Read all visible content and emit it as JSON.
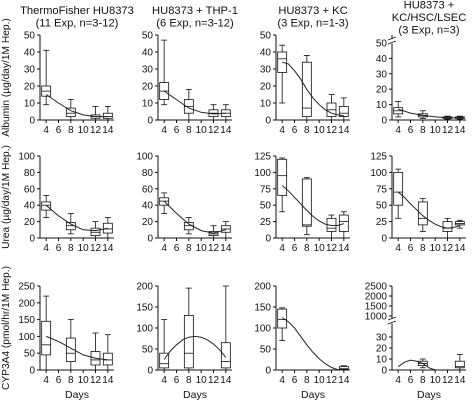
{
  "chart_data": {
    "type": "box",
    "columns": [
      "ThermoFisher HU8373\n(11 Exp, n=3-12)",
      "HU8373 + THP-1\n(6 Exp, n=3-12)",
      "HU8373 + KC\n(3 Exp, n=1-3)",
      "HU8373 +\nKC/HSC/LSEC\n(3 Exp, n=3)"
    ],
    "rows": [
      "Albumin (µg/day/1M Hep.)",
      "Urea (µg/day/1M Hep.)",
      "CYP3A4 (pmol/hr/1M Hep.)"
    ],
    "xlabel": "Days",
    "x_ticks": [
      4,
      6,
      8,
      10,
      12,
      14
    ],
    "panels": [
      {
        "row": 0,
        "col": 0,
        "ylim": [
          0,
          50
        ],
        "yticks": [
          0,
          10,
          20,
          30,
          40,
          50
        ],
        "boxes": [
          {
            "x": 4,
            "min": 9,
            "q1": 14,
            "median": 17,
            "q3": 20,
            "max": 41
          },
          {
            "x": 8,
            "min": 0,
            "q1": 2,
            "median": 4,
            "q3": 7,
            "max": 12
          },
          {
            "x": 12,
            "min": 0,
            "q1": 1,
            "median": 2,
            "q3": 3,
            "max": 8
          },
          {
            "x": 14,
            "min": 0,
            "q1": 1,
            "median": 2,
            "q3": 4,
            "max": 8
          }
        ],
        "curve": [
          [
            4,
            15
          ],
          [
            6,
            10
          ],
          [
            8,
            5.5
          ],
          [
            10,
            3
          ],
          [
            12,
            2
          ],
          [
            14,
            2
          ]
        ]
      },
      {
        "row": 0,
        "col": 1,
        "ylim": [
          0,
          50
        ],
        "yticks": [
          0,
          10,
          20,
          30,
          40,
          50
        ],
        "boxes": [
          {
            "x": 4,
            "min": 9,
            "q1": 12,
            "median": 17,
            "q3": 22,
            "max": 47
          },
          {
            "x": 8,
            "min": 0,
            "q1": 4,
            "median": 8,
            "q3": 12,
            "max": 18
          },
          {
            "x": 12,
            "min": 0,
            "q1": 2,
            "median": 4,
            "q3": 6,
            "max": 9
          },
          {
            "x": 14,
            "min": 0,
            "q1": 2,
            "median": 4,
            "q3": 6,
            "max": 9
          }
        ],
        "curve": [
          [
            4,
            17
          ],
          [
            6,
            12
          ],
          [
            8,
            7
          ],
          [
            10,
            4.5
          ],
          [
            12,
            3.5
          ],
          [
            14,
            4
          ]
        ]
      },
      {
        "row": 0,
        "col": 2,
        "ylim": [
          0,
          50
        ],
        "yticks": [
          0,
          10,
          20,
          30,
          40,
          50
        ],
        "boxes": [
          {
            "x": 4,
            "min": 10,
            "q1": 28,
            "median": 36,
            "q3": 40,
            "max": 44
          },
          {
            "x": 8,
            "min": 0,
            "q1": 2,
            "median": 7,
            "q3": 34,
            "max": 38
          },
          {
            "x": 12,
            "min": 0,
            "q1": 2,
            "median": 6,
            "q3": 10,
            "max": 15
          },
          {
            "x": 14,
            "min": 0,
            "q1": 2,
            "median": 4,
            "q3": 8,
            "max": 13
          }
        ],
        "curve": [
          [
            4,
            34
          ],
          [
            5,
            33
          ],
          [
            6,
            29
          ],
          [
            7,
            24
          ],
          [
            8,
            18
          ],
          [
            9,
            13
          ],
          [
            10,
            9
          ],
          [
            11,
            6
          ],
          [
            12,
            4
          ],
          [
            13,
            3
          ],
          [
            14,
            2.5
          ]
        ]
      },
      {
        "row": 0,
        "col": 3,
        "ylim": [
          0,
          50
        ],
        "yticks": [
          0,
          10,
          20,
          30,
          40,
          50
        ],
        "axis_break": true,
        "boxes": [
          {
            "x": 4,
            "min": 2,
            "q1": 4,
            "median": 6,
            "q3": 8,
            "max": 12
          },
          {
            "x": 8,
            "min": 1,
            "q1": 2,
            "median": 3,
            "q3": 4,
            "max": 6
          },
          {
            "x": 12,
            "min": 0.5,
            "q1": 1,
            "median": 1.5,
            "q3": 2,
            "max": 2.5
          },
          {
            "x": 14,
            "min": 0.5,
            "q1": 1,
            "median": 1.5,
            "q3": 2,
            "max": 2.5
          }
        ],
        "curve": [
          [
            4,
            7
          ],
          [
            6,
            4.5
          ],
          [
            8,
            3
          ],
          [
            10,
            2
          ],
          [
            12,
            1.5
          ],
          [
            14,
            1.5
          ]
        ]
      },
      {
        "row": 1,
        "col": 0,
        "ylim": [
          0,
          100
        ],
        "yticks": [
          0,
          20,
          40,
          60,
          80,
          100
        ],
        "boxes": [
          {
            "x": 4,
            "min": 25,
            "q1": 34,
            "median": 40,
            "q3": 44,
            "max": 52
          },
          {
            "x": 8,
            "min": 5,
            "q1": 10,
            "median": 15,
            "q3": 19,
            "max": 30
          },
          {
            "x": 12,
            "min": 0,
            "q1": 3,
            "median": 7,
            "q3": 12,
            "max": 20
          },
          {
            "x": 14,
            "min": 0,
            "q1": 6,
            "median": 11,
            "q3": 18,
            "max": 25
          }
        ],
        "curve": [
          [
            4,
            40
          ],
          [
            6,
            27
          ],
          [
            8,
            17
          ],
          [
            10,
            10
          ],
          [
            12,
            9
          ],
          [
            14,
            12
          ]
        ]
      },
      {
        "row": 1,
        "col": 1,
        "ylim": [
          0,
          100
        ],
        "yticks": [
          0,
          20,
          40,
          60,
          80,
          100
        ],
        "boxes": [
          {
            "x": 4,
            "min": 30,
            "q1": 40,
            "median": 45,
            "q3": 49,
            "max": 55
          },
          {
            "x": 8,
            "min": 5,
            "q1": 10,
            "median": 15,
            "q3": 19,
            "max": 25
          },
          {
            "x": 12,
            "min": 0,
            "q1": 3,
            "median": 5,
            "q3": 8,
            "max": 15
          },
          {
            "x": 14,
            "min": 0,
            "q1": 7,
            "median": 11,
            "q3": 15,
            "max": 20
          }
        ],
        "curve": [
          [
            4,
            45
          ],
          [
            6,
            30
          ],
          [
            8,
            17
          ],
          [
            10,
            9
          ],
          [
            12,
            6
          ],
          [
            14,
            10
          ]
        ]
      },
      {
        "row": 1,
        "col": 2,
        "ylim": [
          0,
          125
        ],
        "yticks": [
          0,
          25,
          50,
          75,
          100,
          125
        ],
        "boxes": [
          {
            "x": 4,
            "min": 40,
            "q1": 65,
            "median": 95,
            "q3": 120,
            "max": 122
          },
          {
            "x": 8,
            "min": 5,
            "q1": 18,
            "median": 20,
            "q3": 90,
            "max": 92
          },
          {
            "x": 12,
            "min": 0,
            "q1": 10,
            "median": 15,
            "q3": 30,
            "max": 35
          },
          {
            "x": 14,
            "min": 0,
            "q1": 10,
            "median": 25,
            "q3": 35,
            "max": 40
          }
        ],
        "curve": [
          [
            4,
            80
          ],
          [
            5,
            72
          ],
          [
            6,
            62
          ],
          [
            7,
            52
          ],
          [
            8,
            42
          ],
          [
            9,
            33
          ],
          [
            10,
            26
          ],
          [
            11,
            21
          ],
          [
            12,
            19
          ],
          [
            13,
            19
          ],
          [
            14,
            22
          ]
        ]
      },
      {
        "row": 1,
        "col": 3,
        "ylim": [
          0,
          125
        ],
        "yticks": [
          0,
          25,
          50,
          75,
          100,
          125
        ],
        "boxes": [
          {
            "x": 4,
            "min": 30,
            "q1": 50,
            "median": 70,
            "q3": 100,
            "max": 105
          },
          {
            "x": 8,
            "min": 10,
            "q1": 20,
            "median": 30,
            "q3": 55,
            "max": 60
          },
          {
            "x": 12,
            "min": 0,
            "q1": 10,
            "median": 15,
            "q3": 25,
            "max": 30
          },
          {
            "x": 14,
            "min": 15,
            "q1": 20,
            "median": 22,
            "q3": 25,
            "max": 27
          }
        ],
        "curve": [
          [
            4,
            70
          ],
          [
            5,
            62
          ],
          [
            6,
            52
          ],
          [
            7,
            43
          ],
          [
            8,
            34
          ],
          [
            9,
            27
          ],
          [
            10,
            21
          ],
          [
            11,
            17
          ],
          [
            12,
            15
          ],
          [
            13,
            16
          ],
          [
            14,
            19
          ]
        ]
      },
      {
        "row": 2,
        "col": 0,
        "ylim": [
          0,
          250
        ],
        "yticks": [
          0,
          50,
          100,
          150,
          200,
          250
        ],
        "boxes": [
          {
            "x": 4,
            "min": 0,
            "q1": 45,
            "median": 75,
            "q3": 145,
            "max": 220
          },
          {
            "x": 8,
            "min": 0,
            "q1": 25,
            "median": 50,
            "q3": 95,
            "max": 150
          },
          {
            "x": 12,
            "min": 0,
            "q1": 15,
            "median": 30,
            "q3": 55,
            "max": 110
          },
          {
            "x": 14,
            "min": 0,
            "q1": 15,
            "median": 30,
            "q3": 50,
            "max": 105
          }
        ],
        "curve": [
          [
            4,
            100
          ],
          [
            6,
            85
          ],
          [
            8,
            65
          ],
          [
            10,
            45
          ],
          [
            12,
            35
          ],
          [
            14,
            30
          ]
        ]
      },
      {
        "row": 2,
        "col": 1,
        "ylim": [
          0,
          200
        ],
        "yticks": [
          0,
          50,
          100,
          150,
          200
        ],
        "boxes": [
          {
            "x": 4,
            "min": 0,
            "q1": 5,
            "median": 15,
            "q3": 40,
            "max": 120
          },
          {
            "x": 8,
            "min": 0,
            "q1": 5,
            "median": 40,
            "q3": 130,
            "max": 195
          },
          {
            "x": 14,
            "min": 0,
            "q1": 5,
            "median": 20,
            "q3": 65,
            "max": 200
          }
        ],
        "curve": [
          [
            4,
            25
          ],
          [
            5,
            45
          ],
          [
            6,
            60
          ],
          [
            7,
            72
          ],
          [
            8,
            78
          ],
          [
            9,
            80
          ],
          [
            10,
            78
          ],
          [
            11,
            72
          ],
          [
            12,
            62
          ],
          [
            13,
            48
          ],
          [
            14,
            30
          ]
        ]
      },
      {
        "row": 2,
        "col": 2,
        "ylim": [
          0,
          200
        ],
        "yticks": [
          0,
          50,
          100,
          150,
          200
        ],
        "boxes": [
          {
            "x": 4,
            "min": 70,
            "q1": 100,
            "median": 120,
            "q3": 145,
            "max": 148
          },
          {
            "x": 14,
            "min": 0,
            "q1": 2,
            "median": 3,
            "q3": 8,
            "max": 10
          }
        ],
        "curve": [
          [
            4,
            125
          ],
          [
            5,
            115
          ],
          [
            6,
            100
          ],
          [
            7,
            80
          ],
          [
            8,
            60
          ],
          [
            9,
            42
          ],
          [
            10,
            27
          ],
          [
            11,
            15
          ],
          [
            12,
            6
          ],
          [
            13,
            1
          ],
          [
            14,
            0
          ]
        ]
      },
      {
        "row": 2,
        "col": 3,
        "ylim": [
          0,
          40
        ],
        "yticks": [
          0,
          10,
          20,
          30
        ],
        "axis_break": true,
        "upper_yticks": [
          "1000",
          "1500",
          "2000",
          "2500"
        ],
        "boxes": [
          {
            "x": 8,
            "min": 2,
            "q1": 4,
            "median": 6,
            "q3": 8,
            "max": 10
          },
          {
            "x": 14,
            "min": 0,
            "q1": 2,
            "median": 3,
            "q3": 8,
            "max": 14
          }
        ],
        "curve": [
          [
            4,
            3
          ],
          [
            5,
            7
          ],
          [
            6,
            9
          ],
          [
            7,
            8
          ],
          [
            8,
            6
          ],
          [
            9,
            2
          ],
          [
            10,
            0
          ],
          [
            11,
            -4
          ],
          [
            12,
            -8
          ],
          [
            13,
            -12
          ],
          [
            14,
            -16
          ]
        ]
      }
    ]
  }
}
